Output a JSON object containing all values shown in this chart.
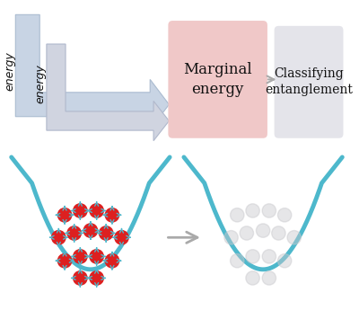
{
  "bg_color": "#ffffff",
  "marginal_box_color": "#f0c8c8",
  "classifying_box_color": "#e4e4ea",
  "arrow1_fc": "#c8d4e4",
  "arrow1_ec": "#aabbd0",
  "arrow2_fc": "#d0d4e0",
  "arrow2_ec": "#b0b8cc",
  "teal_color": "#4db8cc",
  "red_ball_color": "#dd2020",
  "ghost_ball_color": "#c8c8cc",
  "text_color": "#111111",
  "marginal_text": "Marginal\nenergy",
  "classifying_text": "Classifying\nentanglement",
  "energy_label1": "energy",
  "energy_label2": "energy",
  "mid_arrow_color": "#aaaaaa",
  "bottom_arrow_color": "#aaaaaa"
}
